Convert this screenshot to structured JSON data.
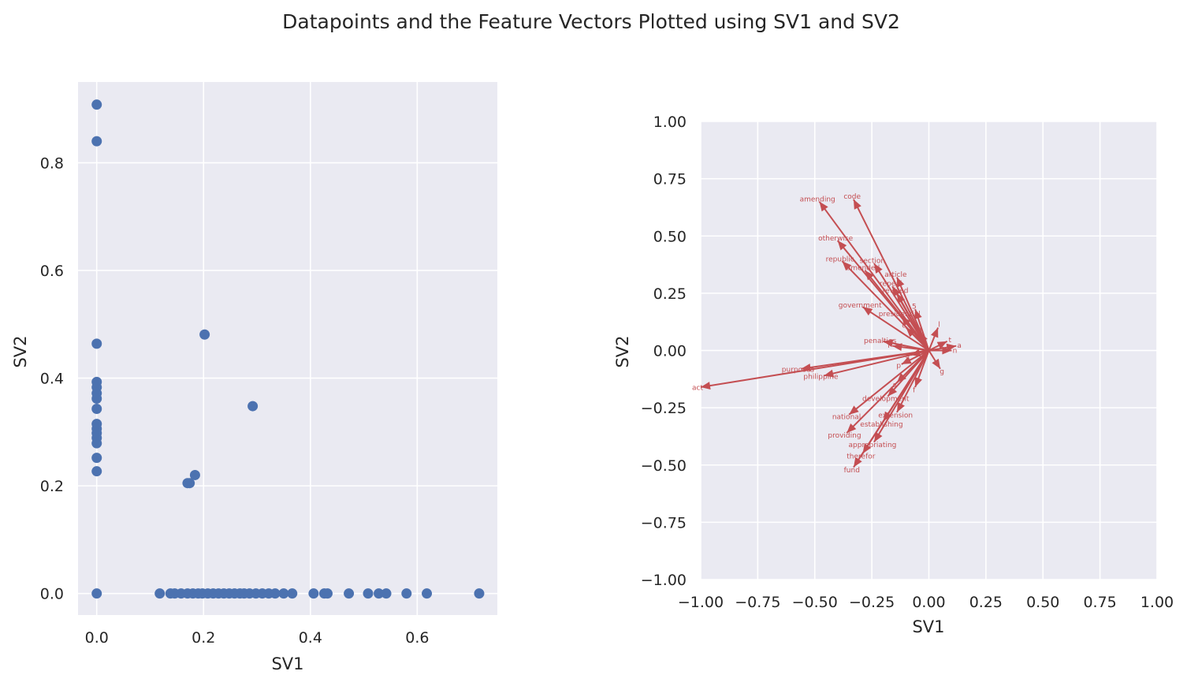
{
  "figure_title": "Datapoints and the Feature Vectors Plotted using SV1 and SV2",
  "colors": {
    "panel_bg": "#eaeaf2",
    "grid": "#ffffff",
    "points": "#4c72b0",
    "arrows": "#c44e52",
    "text": "#262626"
  },
  "chart_data": [
    {
      "type": "scatter",
      "title": "",
      "xlabel": "SV1",
      "ylabel": "SV2",
      "xlim": [
        -0.035,
        0.75
      ],
      "ylim": [
        -0.04,
        0.95
      ],
      "xticks": [
        0.0,
        0.2,
        0.4,
        0.6
      ],
      "xtick_labels": [
        "0.0",
        "0.2",
        "0.4",
        "0.6"
      ],
      "yticks": [
        0.0,
        0.2,
        0.4,
        0.6,
        0.8
      ],
      "ytick_labels": [
        "0.0",
        "0.2",
        "0.4",
        "0.6",
        "0.8"
      ],
      "points": [
        [
          0.0,
          0.908
        ],
        [
          0.0,
          0.84
        ],
        [
          0.0,
          0.464
        ],
        [
          0.0,
          0.393
        ],
        [
          0.0,
          0.383
        ],
        [
          0.0,
          0.372
        ],
        [
          0.0,
          0.362
        ],
        [
          0.0,
          0.343
        ],
        [
          0.0,
          0.315
        ],
        [
          0.0,
          0.306
        ],
        [
          0.0,
          0.298
        ],
        [
          0.0,
          0.289
        ],
        [
          0.0,
          0.279
        ],
        [
          0.0,
          0.252
        ],
        [
          0.0,
          0.227
        ],
        [
          0.0,
          0.0
        ],
        [
          0.202,
          0.481
        ],
        [
          0.292,
          0.348
        ],
        [
          0.184,
          0.22
        ],
        [
          0.17,
          0.205
        ],
        [
          0.174,
          0.205
        ],
        [
          0.118,
          0.0
        ],
        [
          0.138,
          0.0
        ],
        [
          0.146,
          0.0
        ],
        [
          0.158,
          0.0
        ],
        [
          0.17,
          0.0
        ],
        [
          0.18,
          0.0
        ],
        [
          0.19,
          0.0
        ],
        [
          0.198,
          0.0
        ],
        [
          0.208,
          0.0
        ],
        [
          0.218,
          0.0
        ],
        [
          0.228,
          0.0
        ],
        [
          0.238,
          0.0
        ],
        [
          0.248,
          0.0
        ],
        [
          0.258,
          0.0
        ],
        [
          0.268,
          0.0
        ],
        [
          0.276,
          0.0
        ],
        [
          0.286,
          0.0
        ],
        [
          0.298,
          0.0
        ],
        [
          0.31,
          0.0
        ],
        [
          0.322,
          0.0
        ],
        [
          0.334,
          0.0
        ],
        [
          0.35,
          0.0
        ],
        [
          0.366,
          0.0
        ],
        [
          0.406,
          0.0
        ],
        [
          0.426,
          0.0
        ],
        [
          0.432,
          0.0
        ],
        [
          0.472,
          0.0
        ],
        [
          0.508,
          0.0
        ],
        [
          0.528,
          0.0
        ],
        [
          0.542,
          0.0
        ],
        [
          0.58,
          0.0
        ],
        [
          0.618,
          0.0
        ],
        [
          0.716,
          0.0
        ]
      ]
    },
    {
      "type": "biplot",
      "title": "",
      "xlabel": "SV1",
      "ylabel": "SV2",
      "xlim": [
        -1.0,
        1.0
      ],
      "ylim": [
        -1.0,
        1.0
      ],
      "xticks": [
        -1.0,
        -0.75,
        -0.5,
        -0.25,
        0.0,
        0.25,
        0.5,
        0.75,
        1.0
      ],
      "xtick_labels": [
        "−1.00",
        "−0.75",
        "−0.50",
        "−0.25",
        "0.00",
        "0.25",
        "0.50",
        "0.75",
        "1.00"
      ],
      "yticks": [
        -1.0,
        -0.75,
        -0.5,
        -0.25,
        0.0,
        0.25,
        0.5,
        0.75,
        1.0
      ],
      "ytick_labels": [
        "−1.00",
        "−0.75",
        "−0.50",
        "−0.25",
        "0.00",
        "0.25",
        "0.50",
        "0.75",
        "1.00"
      ],
      "vectors": [
        {
          "label": "act",
          "x": -1.0,
          "y": -0.16
        },
        {
          "label": "amending",
          "x": -0.48,
          "y": 0.65
        },
        {
          "label": "code",
          "x": -0.33,
          "y": 0.66
        },
        {
          "label": "otherwise",
          "x": -0.4,
          "y": 0.48
        },
        {
          "label": "republic",
          "x": -0.38,
          "y": 0.39
        },
        {
          "label": "section",
          "x": -0.24,
          "y": 0.38
        },
        {
          "label": "article",
          "x": -0.14,
          "y": 0.32
        },
        {
          "label": "amended",
          "x": -0.28,
          "y": 0.35
        },
        {
          "label": "repeal",
          "x": -0.16,
          "y": 0.28
        },
        {
          "label": "revised",
          "x": -0.14,
          "y": 0.25
        },
        {
          "label": "5",
          "x": -0.06,
          "y": 0.18
        },
        {
          "label": "government",
          "x": -0.29,
          "y": 0.19
        },
        {
          "label": "presidential",
          "x": -0.12,
          "y": 0.15
        },
        {
          "label": "penalties",
          "x": -0.2,
          "y": 0.04
        },
        {
          "label": "purposes",
          "x": -0.56,
          "y": -0.08
        },
        {
          "label": "philippine",
          "x": -0.46,
          "y": -0.11
        },
        {
          "label": "national",
          "x": -0.35,
          "y": -0.28
        },
        {
          "label": "extension",
          "x": -0.14,
          "y": -0.27
        },
        {
          "label": "establishing",
          "x": -0.2,
          "y": -0.31
        },
        {
          "label": "providing",
          "x": -0.36,
          "y": -0.36
        },
        {
          "label": "appropriating",
          "x": -0.24,
          "y": -0.4
        },
        {
          "label": "therefor",
          "x": -0.29,
          "y": -0.45
        },
        {
          "label": "fund",
          "x": -0.33,
          "y": -0.51
        },
        {
          "label": "development",
          "x": -0.18,
          "y": -0.2
        },
        {
          "label": "s",
          "x": -0.14,
          "y": -0.14
        },
        {
          "label": "t",
          "x": 0.08,
          "y": 0.04
        },
        {
          "label": "n",
          "x": 0.1,
          "y": 0.0
        },
        {
          "label": "g",
          "x": 0.05,
          "y": -0.08
        },
        {
          "label": "m",
          "x": -0.04,
          "y": 0.08
        },
        {
          "label": "c",
          "x": -0.1,
          "y": 0.1
        },
        {
          "label": "p",
          "x": -0.12,
          "y": -0.06
        },
        {
          "label": "f",
          "x": -0.06,
          "y": -0.16
        },
        {
          "label": "a",
          "x": 0.12,
          "y": 0.02
        },
        {
          "label": "e",
          "x": -0.08,
          "y": -0.02
        },
        {
          "label": "l",
          "x": 0.04,
          "y": 0.1
        },
        {
          "label": "r",
          "x": -0.16,
          "y": 0.02
        }
      ]
    }
  ]
}
